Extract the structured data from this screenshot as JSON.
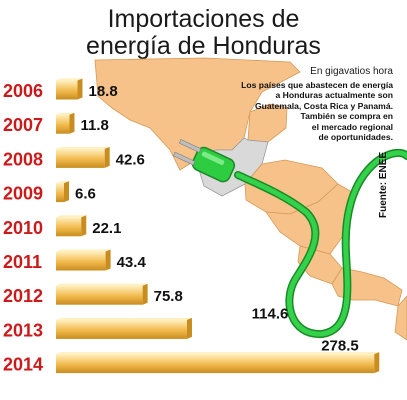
{
  "title_lines": [
    "Importaciones de",
    "energía de Honduras"
  ],
  "unit_note": "En gigavatios hora",
  "info_lines": [
    "Los países que abastecen de energía",
    "a Honduras actualmente son",
    "Guatemala, Costa Rica y Panamá.",
    "También se compra en",
    "el mercado regional",
    "de oportunidades."
  ],
  "source_note": "Fuente: ENEE",
  "colors": {
    "year_label": "#cc1a1a",
    "bar_light": "#fff0bf",
    "bar_mid": "#f2b94c",
    "bar_dark": "#c98d1f",
    "map_land": "#f6c28a",
    "map_highlight": "#d9d9d9",
    "cable": "#2ecc40",
    "cable_dark": "#1a8a26"
  },
  "chart_data": {
    "type": "bar",
    "orientation": "horizontal",
    "categories": [
      "2006",
      "2007",
      "2008",
      "2009",
      "2010",
      "2011",
      "2012",
      "2013",
      "2014"
    ],
    "values": [
      18.8,
      11.8,
      42.6,
      6.6,
      22.1,
      43.4,
      75.8,
      114.6,
      278.5
    ],
    "value_labels": [
      "18.8",
      "11.8",
      "42.6",
      "6.6",
      "22.1",
      "43.4",
      "75.8",
      "114.6",
      "278.5"
    ],
    "unit": "En gigavatios hora",
    "xlim": [
      0,
      280
    ],
    "grid": false,
    "legend": "none"
  }
}
